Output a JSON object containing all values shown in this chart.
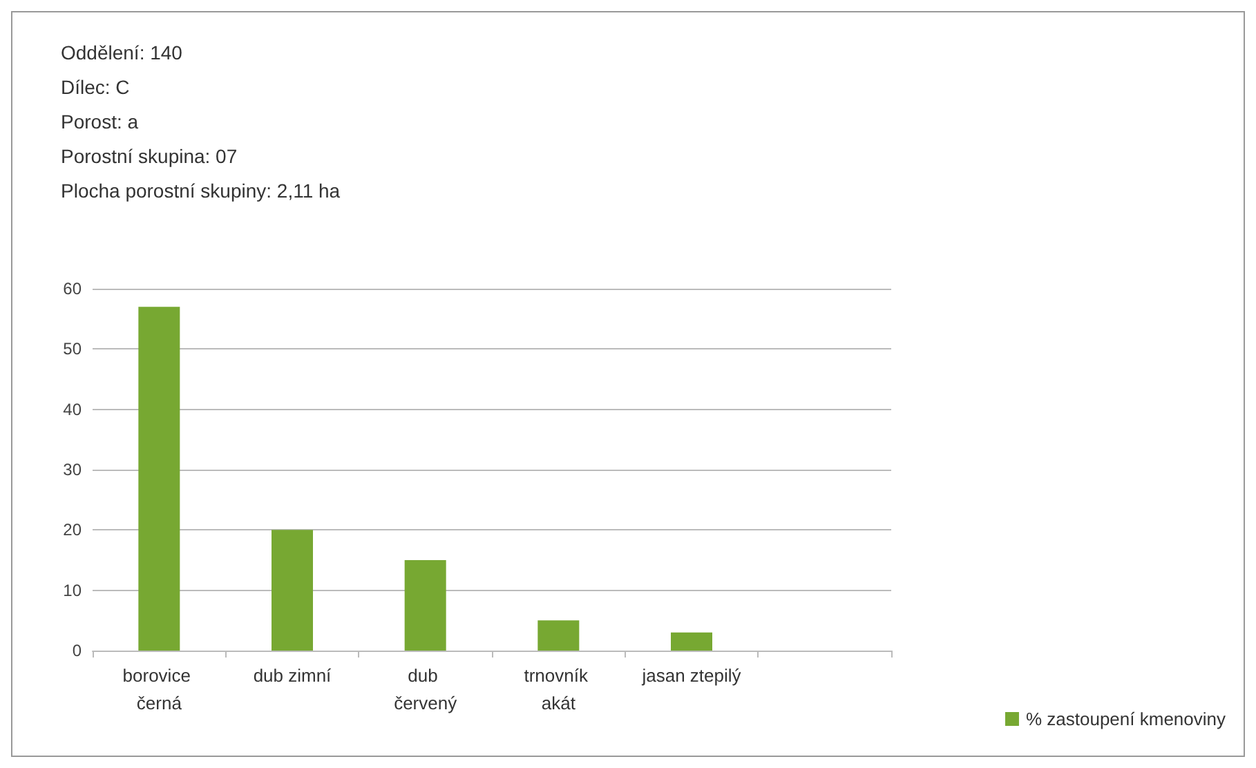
{
  "chart_data": {
    "type": "bar",
    "annotations": [
      "Oddělení: 140",
      "Dílec: C",
      "Porost: a",
      "Porostní skupina: 07",
      "Plocha porostní skupiny: 2,11 ha"
    ],
    "categories": [
      "borovice černá",
      "dub zimní",
      "dub červený",
      "trnovník akát",
      "jasan ztepilý",
      null
    ],
    "series": [
      {
        "name": "% zastoupení kmenoviny",
        "color": "#77a832",
        "values": [
          57,
          20,
          15,
          5,
          3,
          null
        ]
      }
    ],
    "ylim": [
      0,
      60
    ],
    "yticks": [
      0,
      10,
      20,
      30,
      40,
      50,
      60
    ],
    "grid": "y",
    "legend": "right"
  }
}
